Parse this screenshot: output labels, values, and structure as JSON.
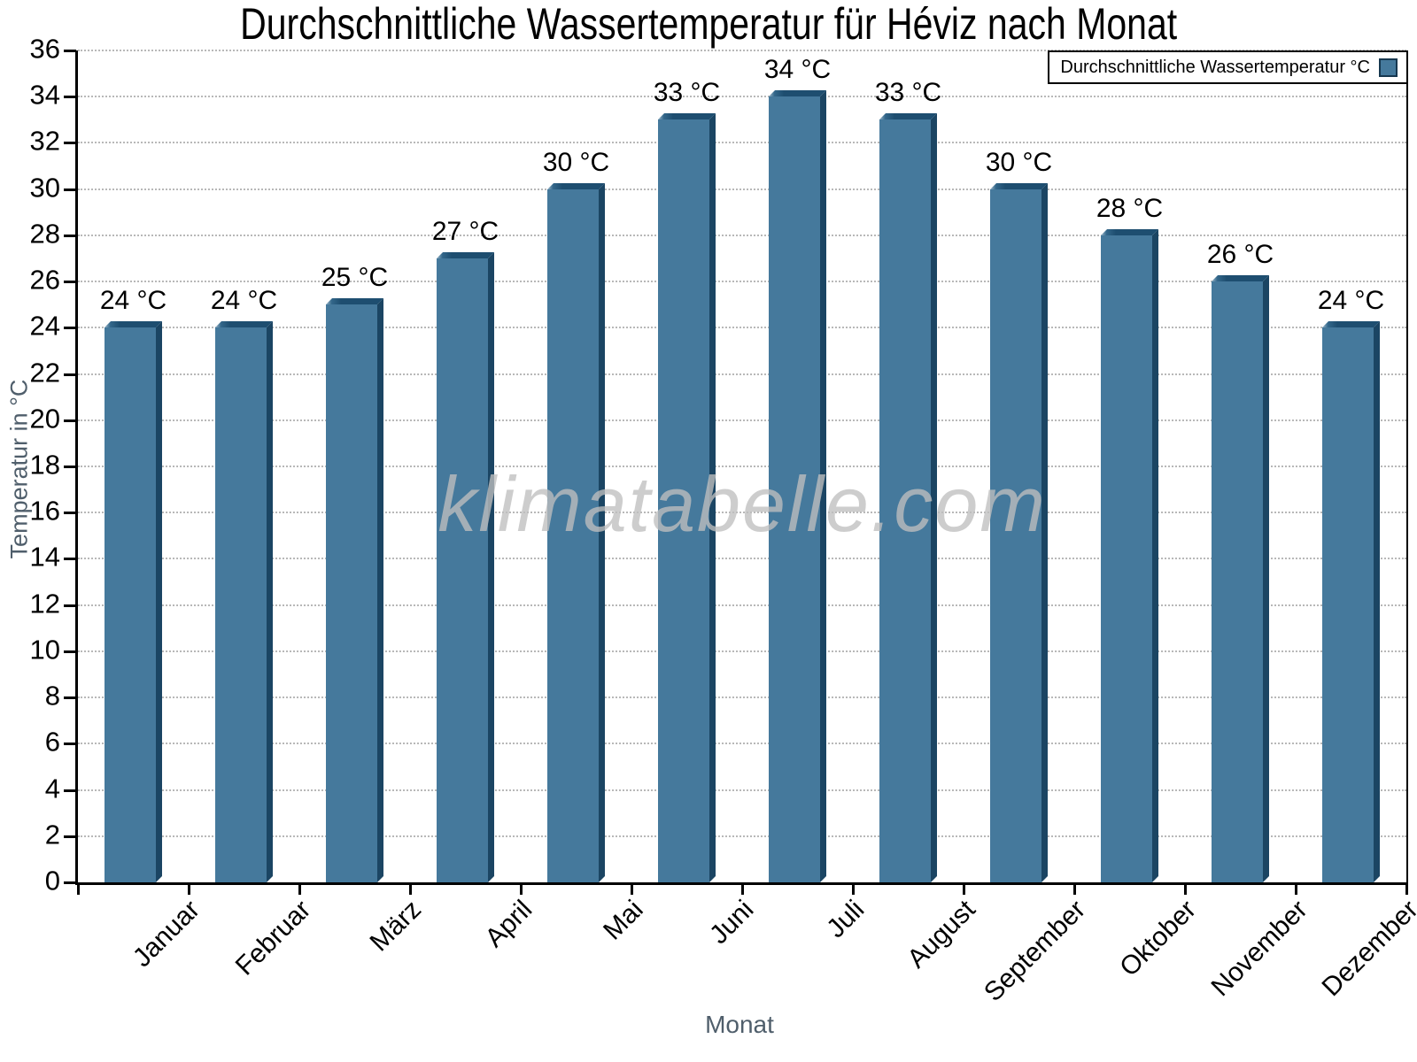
{
  "title": "Durchschnittliche Wassertemperatur für Héviz nach Monat",
  "watermark": "klimatabelle.com",
  "legend": {
    "label": "Durchschnittliche Wassertemperatur °C"
  },
  "colors": {
    "bar_face": "#45799C",
    "bar_side": "#1B4563",
    "bar_top": "#1E4E70",
    "bar_bevel": "#9CB8CA",
    "grid": "#B8B8B8",
    "axis": "#000000",
    "muted_text": "#4F5E6B",
    "watermark": "#BFBFBF"
  },
  "chart_data": {
    "type": "bar",
    "title": "Durchschnittliche Wassertemperatur für Héviz nach Monat",
    "categories": [
      "Januar",
      "Februar",
      "März",
      "April",
      "Mai",
      "Juni",
      "Juli",
      "August",
      "September",
      "Oktober",
      "November",
      "Dezember"
    ],
    "values": [
      24,
      24,
      25,
      27,
      30,
      33,
      34,
      33,
      30,
      28,
      26,
      24
    ],
    "value_unit": "°C",
    "value_labels": [
      "24 °C",
      "24 °C",
      "25 °C",
      "27 °C",
      "30 °C",
      "33 °C",
      "34 °C",
      "33 °C",
      "30 °C",
      "28 °C",
      "26 °C",
      "24 °C"
    ],
    "xlabel": "Monat",
    "ylabel": "Temperatur in °C",
    "ylim": [
      0,
      36
    ],
    "ytick_step": 2,
    "grid": "horizontal-dotted",
    "legend_position": "top-right",
    "legend_entries": [
      "Durchschnittliche Wassertemperatur °C"
    ]
  }
}
